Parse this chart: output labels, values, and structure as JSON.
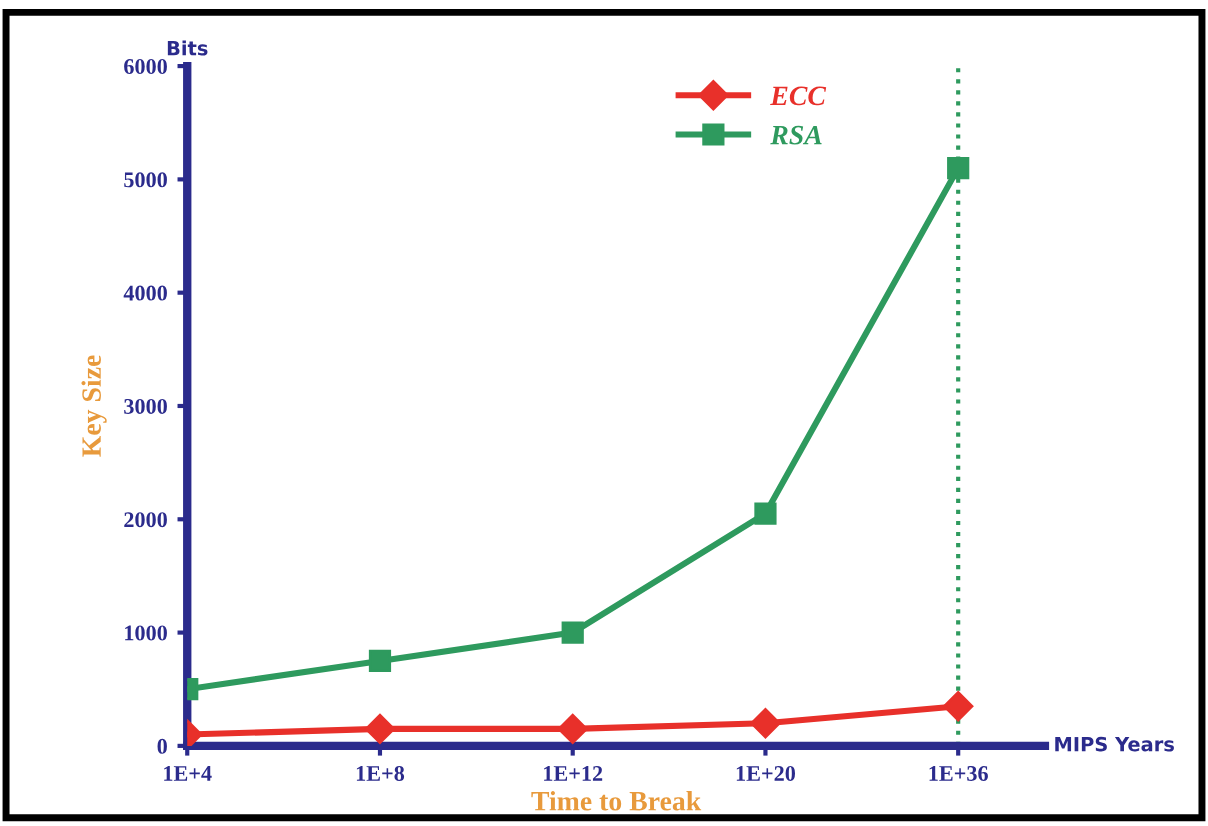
{
  "chart_data": {
    "type": "line",
    "xlabel": "Time to Break",
    "ylabel": "Key Size",
    "categories": [
      "1E+4",
      "1E+8",
      "1E+12",
      "1E+20",
      "1E+36"
    ],
    "series": [
      {
        "name": "ECC",
        "color": "#e8302a",
        "marker": "diamond",
        "values": [
          100,
          150,
          150,
          200,
          350
        ]
      },
      {
        "name": "RSA",
        "color": "#2e9a5e",
        "marker": "square",
        "values": [
          500,
          750,
          1000,
          2050,
          5100
        ]
      }
    ],
    "ylim": [
      0,
      6000
    ],
    "yticks": [
      0,
      1000,
      2000,
      3000,
      4000,
      5000,
      6000
    ],
    "ref_lines": [
      {
        "axis": "x",
        "value": "1E+36",
        "color": "#2e9a5e",
        "line_style": "dotted"
      }
    ],
    "annotations": [
      "Bits",
      "MIPS Years"
    ],
    "grid": false,
    "legend": "top right",
    "line_style": "solid"
  }
}
